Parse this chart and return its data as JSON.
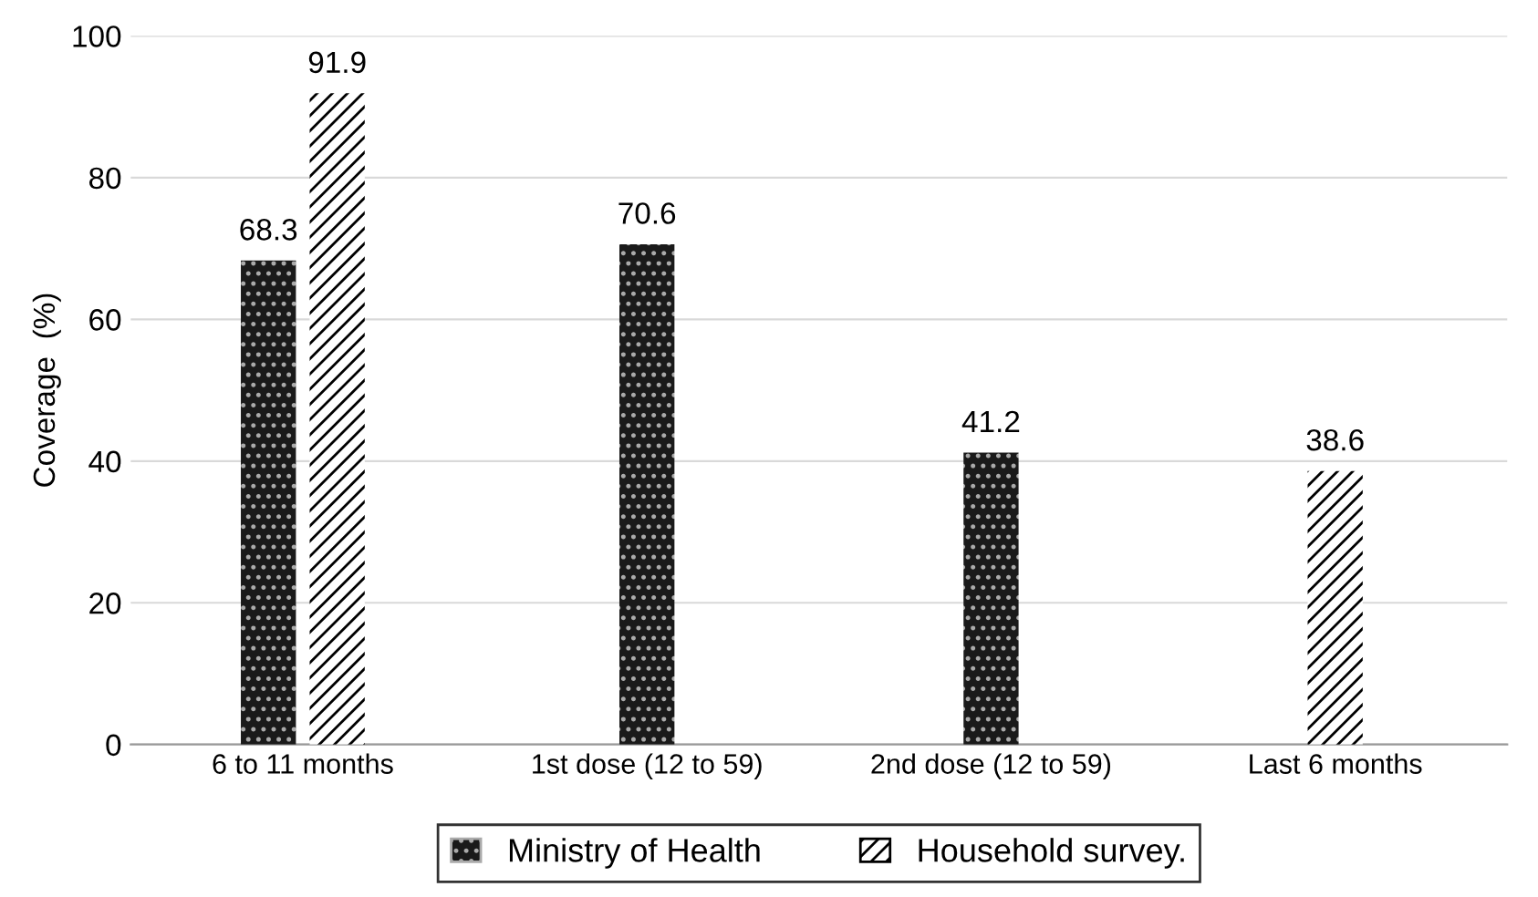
{
  "chart_data": {
    "type": "bar",
    "ylabel": "Coverage  (%)",
    "categories": [
      "6 to 11 months",
      "1st dose (12 to 59)",
      "2nd dose (12 to 59)",
      "Last 6 months"
    ],
    "series": [
      {
        "name": "Ministry of Health",
        "color": "#1a1a1a",
        "values": [
          68.3,
          70.6,
          41.2,
          null
        ]
      },
      {
        "name": "Household survey.",
        "color": "#ffffff",
        "values": [
          91.9,
          null,
          null,
          38.6
        ]
      }
    ],
    "ylim": [
      0,
      100
    ],
    "yticks": [
      0,
      20,
      40,
      60,
      80,
      100
    ],
    "grid": "y",
    "legend": "bottom",
    "data_labels": true
  }
}
